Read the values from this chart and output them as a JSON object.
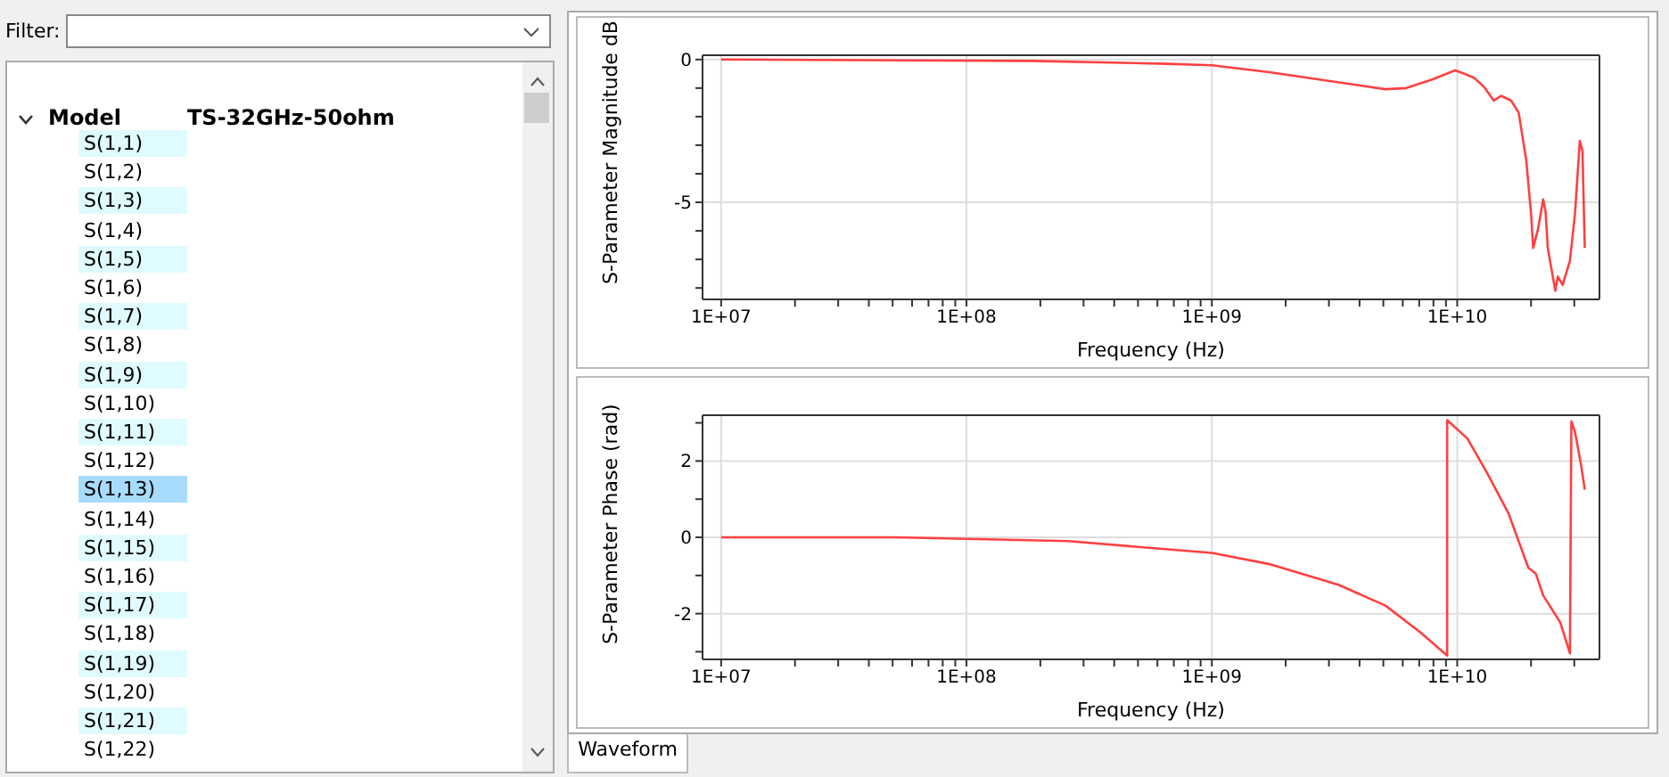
{
  "chart_data": [
    {
      "type": "other",
      "annotations": [
        "Filter:",
        "Model",
        "TS-32GHz-50ohm",
        "S(1,1)",
        "S(1,2)",
        "S(1,3)",
        "S(1,4)",
        "S(1,5)",
        "S(1,6)",
        "S(1,7)",
        "S(1,8)",
        "S(1,9)",
        "S(1,10)",
        "S(1,11)",
        "S(1,12)",
        "S(1,13)",
        "S(1,14)",
        "S(1,15)",
        "S(1,16)",
        "S(1,17)",
        "S(1,18)",
        "S(1,19)",
        "S(1,20)",
        "S(1,21)",
        "S(1,22)",
        "Waveform"
      ]
    },
    {
      "type": "line",
      "xlabel": "Frequency (Hz)",
      "ylabel": "S-Parameter Magnitude dB",
      "log": "x",
      "grid": true,
      "marker": "none",
      "line_style": "solid",
      "color": "#ff4040",
      "xlim": [
        8400000.0,
        38000000000.0
      ],
      "ylim": [
        -8.4,
        0.15
      ],
      "xticks": [
        {
          "value": 10000000.0,
          "label": "1E+07"
        },
        {
          "value": 20000000.0,
          "label": null
        },
        {
          "value": 30000000.0,
          "label": null
        },
        {
          "value": 40000000.0,
          "label": null
        },
        {
          "value": 50000000.0,
          "label": null
        },
        {
          "value": 60000000.0,
          "label": null
        },
        {
          "value": 70000000.0,
          "label": null
        },
        {
          "value": 80000000.0,
          "label": null
        },
        {
          "value": 90000000.0,
          "label": null
        },
        {
          "value": 100000000.0,
          "label": "1E+08"
        },
        {
          "value": 200000000.0,
          "label": null
        },
        {
          "value": 300000000.0,
          "label": null
        },
        {
          "value": 400000000.0,
          "label": null
        },
        {
          "value": 500000000.0,
          "label": null
        },
        {
          "value": 600000000.0,
          "label": null
        },
        {
          "value": 700000000.0,
          "label": null
        },
        {
          "value": 800000000.0,
          "label": null
        },
        {
          "value": 900000000.0,
          "label": null
        },
        {
          "value": 1000000000.0,
          "label": "1E+09"
        },
        {
          "value": 2000000000.0,
          "label": null
        },
        {
          "value": 3000000000.0,
          "label": null
        },
        {
          "value": 4000000000.0,
          "label": null
        },
        {
          "value": 5000000000.0,
          "label": null
        },
        {
          "value": 6000000000.0,
          "label": null
        },
        {
          "value": 7000000000.0,
          "label": null
        },
        {
          "value": 8000000000.0,
          "label": null
        },
        {
          "value": 9000000000.0,
          "label": null
        },
        {
          "value": 10000000000.0,
          "label": "1E+10"
        },
        {
          "value": 20000000000.0,
          "label": null
        },
        {
          "value": 30000000000.0,
          "label": null
        }
      ],
      "yticks": [
        {
          "value": -8,
          "label": null
        },
        {
          "value": -7,
          "label": null
        },
        {
          "value": -6,
          "label": null
        },
        -5,
        {
          "value": -4,
          "label": null
        },
        {
          "value": -3,
          "label": null
        },
        {
          "value": -2,
          "label": null
        },
        {
          "value": -1,
          "label": null
        },
        0
      ],
      "x": [
        10000000.0,
        186000000.0,
        660000000.0,
        1000000000.0,
        1740000000.0,
        3300000000.0,
        5100000000.0,
        6200000000.0,
        7900000000.0,
        9800000000.0,
        10700000000.0,
        11700000000.0,
        12900000000.0,
        14100000000.0,
        15100000000.0,
        16600000000.0,
        17800000000.0,
        19100000000.0,
        20000000000.0,
        20400000000.0,
        21400000000.0,
        22400000000.0,
        22900000000.0,
        23400000000.0,
        25100000000.0,
        25700000000.0,
        26900000000.0,
        28800000000.0,
        30200000000.0,
        31600000000.0,
        32400000000.0,
        33100000000.0
      ],
      "values": [
        0,
        -0.05,
        -0.15,
        -0.2,
        -0.45,
        -0.8,
        -1.04,
        -1.0,
        -0.7,
        -0.38,
        -0.5,
        -0.64,
        -0.97,
        -1.44,
        -1.27,
        -1.44,
        -1.86,
        -3.5,
        -5.4,
        -6.6,
        -5.9,
        -4.9,
        -5.3,
        -6.6,
        -8.1,
        -7.6,
        -7.9,
        -7.05,
        -5.4,
        -2.85,
        -3.2,
        -6.6
      ]
    },
    {
      "type": "line",
      "xlabel": "Frequency (Hz)",
      "ylabel": "S-Parameter Phase (rad)",
      "log": "x",
      "grid": true,
      "marker": "none",
      "line_style": "solid",
      "color": "#ff4040",
      "xlim": [
        8400000.0,
        38000000000.0
      ],
      "ylim": [
        -3.2,
        3.2
      ],
      "xticks": [
        {
          "value": 10000000.0,
          "label": "1E+07"
        },
        {
          "value": 20000000.0,
          "label": null
        },
        {
          "value": 30000000.0,
          "label": null
        },
        {
          "value": 40000000.0,
          "label": null
        },
        {
          "value": 50000000.0,
          "label": null
        },
        {
          "value": 60000000.0,
          "label": null
        },
        {
          "value": 70000000.0,
          "label": null
        },
        {
          "value": 80000000.0,
          "label": null
        },
        {
          "value": 90000000.0,
          "label": null
        },
        {
          "value": 100000000.0,
          "label": "1E+08"
        },
        {
          "value": 200000000.0,
          "label": null
        },
        {
          "value": 300000000.0,
          "label": null
        },
        {
          "value": 400000000.0,
          "label": null
        },
        {
          "value": 500000000.0,
          "label": null
        },
        {
          "value": 600000000.0,
          "label": null
        },
        {
          "value": 700000000.0,
          "label": null
        },
        {
          "value": 800000000.0,
          "label": null
        },
        {
          "value": 900000000.0,
          "label": null
        },
        {
          "value": 1000000000.0,
          "label": "1E+09"
        },
        {
          "value": 2000000000.0,
          "label": null
        },
        {
          "value": 3000000000.0,
          "label": null
        },
        {
          "value": 4000000000.0,
          "label": null
        },
        {
          "value": 5000000000.0,
          "label": null
        },
        {
          "value": 6000000000.0,
          "label": null
        },
        {
          "value": 7000000000.0,
          "label": null
        },
        {
          "value": 8000000000.0,
          "label": null
        },
        {
          "value": 9000000000.0,
          "label": null
        },
        {
          "value": 10000000000.0,
          "label": "1E+10"
        },
        {
          "value": 20000000000.0,
          "label": null
        },
        {
          "value": 30000000000.0,
          "label": null
        }
      ],
      "yticks": [
        {
          "value": -3,
          "label": null
        },
        -2,
        {
          "value": -1,
          "label": null
        },
        0,
        {
          "value": 1,
          "label": null
        },
        2,
        {
          "value": 3,
          "label": null
        }
      ],
      "x": [
        10000000.0,
        51000000.0,
        260000000.0,
        1000000000.0,
        1740000000.0,
        3300000000.0,
        5100000000.0,
        7100000000.0,
        9100000000.0,
        9100000000.0,
        11000000000.0,
        13200000000.0,
        16200000000.0,
        19500000000.0,
        20900000000.0,
        22400000000.0,
        26300000000.0,
        28800000000.0,
        29200000000.0,
        30200000000.0,
        32000000000.0,
        33100000000.0
      ],
      "values": [
        0,
        0,
        -0.1,
        -0.41,
        -0.71,
        -1.25,
        -1.79,
        -2.5,
        -3.1,
        3.07,
        2.59,
        1.7,
        0.62,
        -0.8,
        -0.95,
        -1.52,
        -2.23,
        -3.04,
        3.04,
        2.77,
        1.88,
        1.25
      ]
    }
  ]
}
